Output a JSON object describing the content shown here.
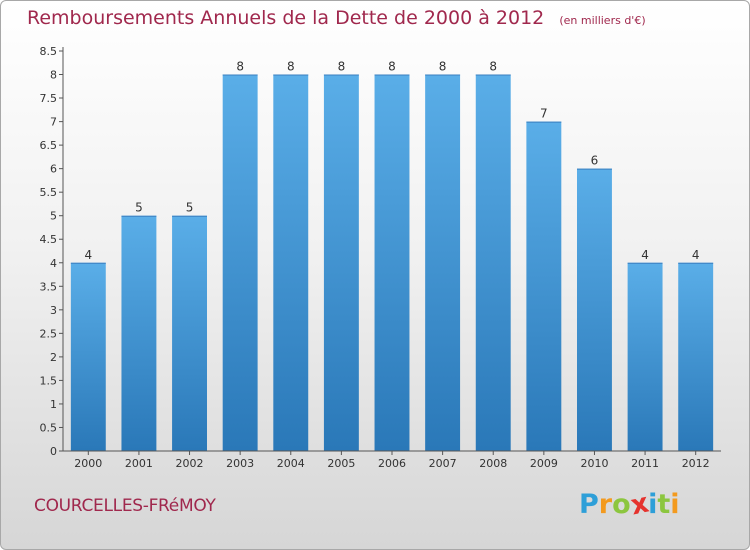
{
  "chart_data": {
    "type": "bar",
    "title": "Remboursements Annuels de la Dette de 2000 à 2012",
    "subtitle": "(en milliers d'€)",
    "categories": [
      "2000",
      "2001",
      "2002",
      "2003",
      "2004",
      "2005",
      "2006",
      "2007",
      "2008",
      "2009",
      "2010",
      "2011",
      "2012"
    ],
    "values": [
      4,
      5,
      5,
      8,
      8,
      8,
      8,
      8,
      8,
      7,
      6,
      4,
      4
    ],
    "data_labels": [
      "4",
      "5",
      "5",
      "8",
      "8",
      "8",
      "8",
      "8",
      "8",
      "7",
      "6",
      "4",
      "4"
    ],
    "ylim": [
      0,
      8.5
    ],
    "yticks": [
      "0",
      "0.5",
      "1",
      "1.5",
      "2",
      "2.5",
      "3",
      "3.5",
      "4",
      "4.5",
      "5",
      "5.5",
      "6",
      "6.5",
      "7",
      "7.5",
      "8",
      "8.5"
    ],
    "xlabel": "",
    "ylabel": "",
    "grid": false,
    "bar_color_top": "#5aaee8",
    "bar_color_bottom": "#2a78b8"
  },
  "footer": {
    "commune": "COURCELLES-FRéMOY",
    "brand_letters": [
      "P",
      "r",
      "o",
      "x",
      "i",
      "t",
      "i"
    ],
    "brand_colors": [
      "#2e9fd8",
      "#f39a1e",
      "#8cc63f",
      "#e5322d",
      "#2e9fd8",
      "#8cc63f",
      "#f39a1e"
    ]
  }
}
